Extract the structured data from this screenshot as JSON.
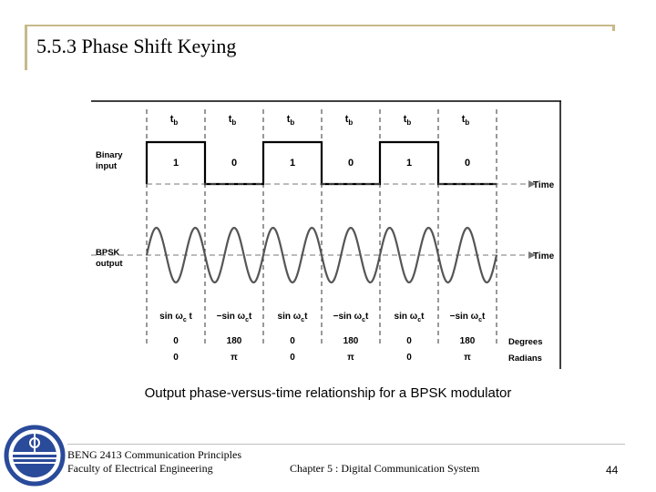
{
  "slide": {
    "title": "5.5.3 Phase Shift Keying",
    "caption": "Output phase-versus-time relationship for a BPSK modulator"
  },
  "diagram": {
    "bit_period_label": "t",
    "bit_period_subscript": "b",
    "binary_label": [
      "Binary",
      "input"
    ],
    "bpsk_label": [
      "BPSK",
      "output"
    ],
    "axis_label": "Time",
    "bits": [
      "1",
      "0",
      "1",
      "0",
      "1",
      "0"
    ],
    "phase_expressions": [
      {
        "text": "sin ω",
        "sub": "c",
        "tail": " t"
      },
      {
        "text": "−sin ω",
        "sub": "c",
        "tail": "t"
      },
      {
        "text": "sin ω",
        "sub": "c",
        "tail": "t"
      },
      {
        "text": "−sin ω",
        "sub": "c",
        "tail": "t"
      },
      {
        "text": "sin ω",
        "sub": "c",
        "tail": "t"
      },
      {
        "text": "−sin ω",
        "sub": "c",
        "tail": "t"
      }
    ],
    "degrees": [
      "0",
      "180",
      "0",
      "180",
      "0",
      "180"
    ],
    "radians": [
      "0",
      "π",
      "0",
      "π",
      "0",
      "π"
    ],
    "degrees_label": "Degrees",
    "radians_label": "Radians"
  },
  "footer": {
    "line1": "BENG 2413 Communication Principles",
    "line2": "Faculty of Electrical Engineering",
    "chapter": "Chapter 5 : Digital Communication System",
    "page": "44"
  },
  "colors": {
    "accent": "#c8b98a",
    "logo_blue": "#2a4a9a"
  }
}
